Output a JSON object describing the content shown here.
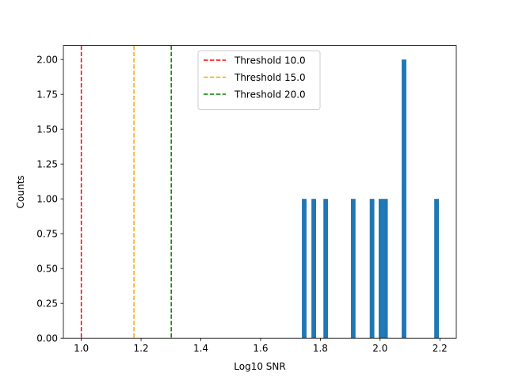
{
  "chart_data": {
    "type": "bar",
    "title": "",
    "xlabel": "Log10 SNR",
    "ylabel": "Counts",
    "xlim": [
      0.94,
      2.255
    ],
    "ylim": [
      0,
      2.1
    ],
    "xticks": [
      1.0,
      1.2,
      1.4,
      1.6,
      1.8,
      2.0,
      2.2
    ],
    "xtick_labels": [
      "1.0",
      "1.2",
      "1.4",
      "1.6",
      "1.8",
      "2.0",
      "2.2"
    ],
    "yticks": [
      0,
      0.25,
      0.5,
      0.75,
      1.0,
      1.25,
      1.5,
      1.75,
      2.0
    ],
    "ytick_labels": [
      "0.00",
      "0.25",
      "0.50",
      "0.75",
      "1.00",
      "1.25",
      "1.50",
      "1.75",
      "2.00"
    ],
    "bin_width": 0.0155,
    "bars": [
      {
        "x": 1.746,
        "count": 1
      },
      {
        "x": 1.778,
        "count": 1
      },
      {
        "x": 1.818,
        "count": 1
      },
      {
        "x": 1.91,
        "count": 1
      },
      {
        "x": 1.973,
        "count": 1
      },
      {
        "x": 2.003,
        "count": 1
      },
      {
        "x": 2.018,
        "count": 1
      },
      {
        "x": 2.08,
        "count": 2
      },
      {
        "x": 2.189,
        "count": 1
      }
    ],
    "bar_color": "#1f77b4",
    "thresholds": [
      {
        "label": "Threshold 10.0",
        "x": 1.0,
        "color": "#ff0000"
      },
      {
        "label": "Threshold 15.0",
        "x": 1.1761,
        "color": "#ffa500"
      },
      {
        "label": "Threshold 20.0",
        "x": 1.301,
        "color": "#008000"
      }
    ],
    "legend_position": "top-center",
    "grid": false
  }
}
